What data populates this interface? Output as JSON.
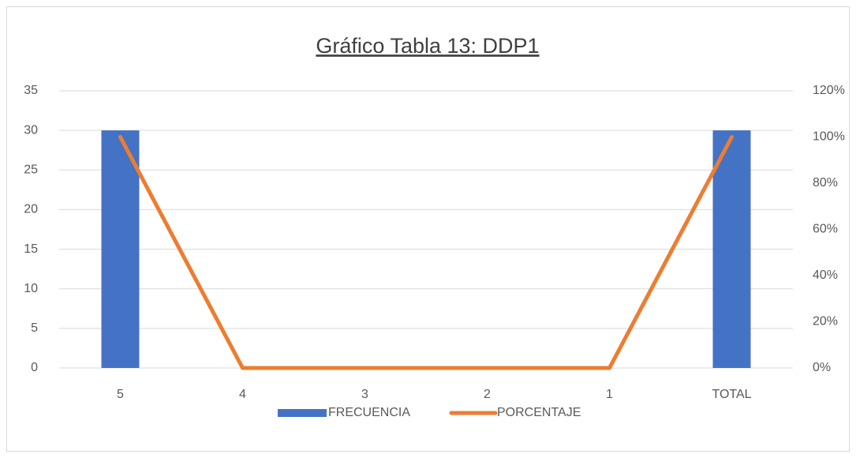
{
  "chart_data": {
    "type": "bar",
    "title": "Gráfico Tabla 13: DDP1",
    "categories": [
      "5",
      "4",
      "3",
      "2",
      "1",
      "TOTAL"
    ],
    "series": [
      {
        "name": "FRECUENCIA",
        "type": "bar",
        "color": "#4472c4",
        "values": [
          30,
          0,
          0,
          0,
          0,
          30
        ]
      },
      {
        "name": "PORCENTAJE",
        "type": "line",
        "axis": "y2",
        "color": "#ed7d31",
        "values": [
          100,
          0,
          0,
          0,
          0,
          100
        ]
      }
    ],
    "ylim": [
      0,
      35
    ],
    "yticks": [
      0,
      5,
      10,
      15,
      20,
      25,
      30,
      35
    ],
    "y2lim": [
      0,
      120
    ],
    "y2ticks": [
      {
        "value": 0,
        "label": "0%"
      },
      {
        "value": 20,
        "label": "20%"
      },
      {
        "value": 40,
        "label": "40%"
      },
      {
        "value": 60,
        "label": "60%"
      },
      {
        "value": 80,
        "label": "80%"
      },
      {
        "value": 100,
        "label": "100%"
      },
      {
        "value": 120,
        "label": "120%"
      }
    ],
    "grid": true,
    "legend": "bottom"
  }
}
